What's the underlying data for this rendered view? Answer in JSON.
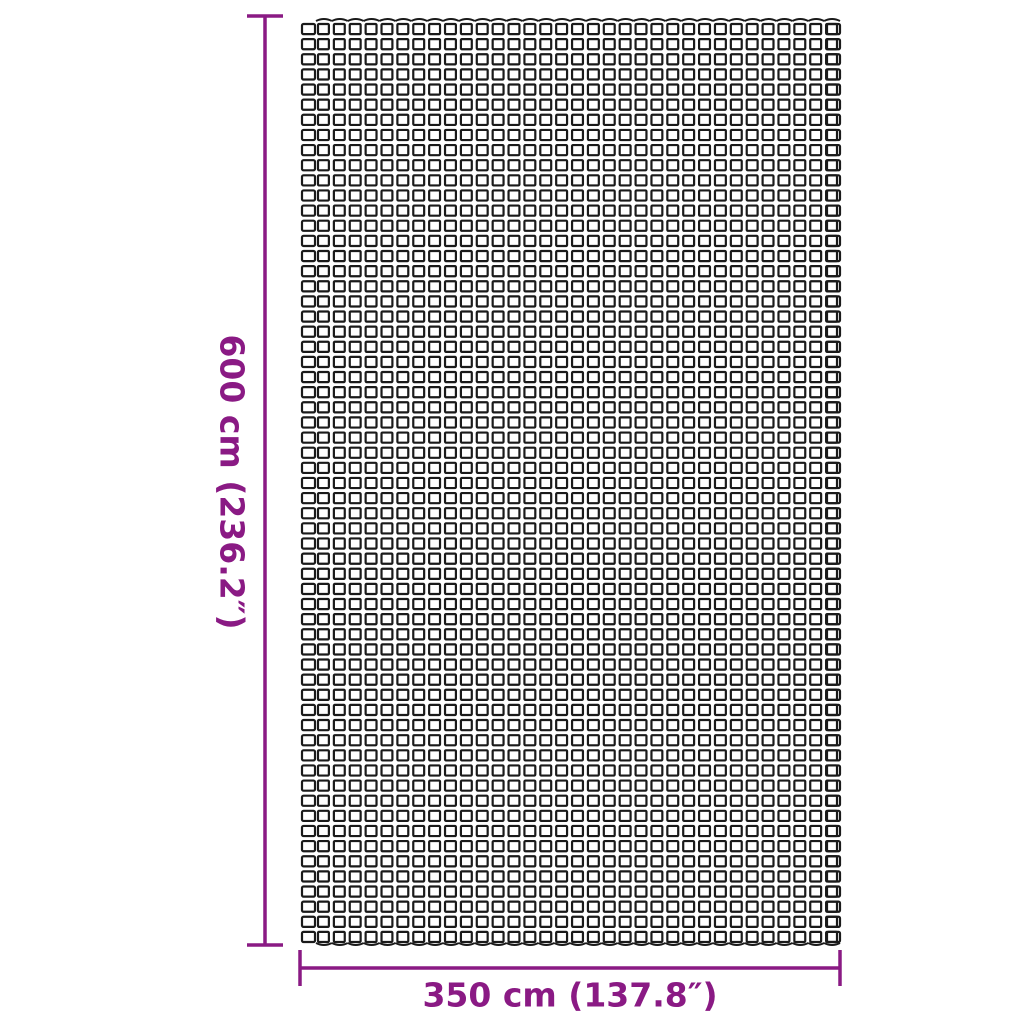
{
  "product": {
    "pattern": "square-grid-mat",
    "outline_color": "#1a1a1a"
  },
  "dimensions": {
    "color": "#8a1a84",
    "width_label": "350 cm (137.8″)",
    "height_label": "600 cm (236.2″)"
  }
}
